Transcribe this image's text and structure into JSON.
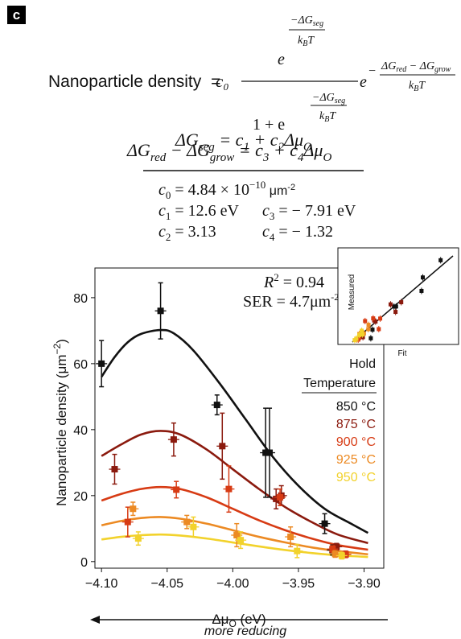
{
  "panel_label": "c",
  "equations": {
    "lhs": "Nanoparticle density",
    "eq": "=",
    "c0": "c₀",
    "e": "e",
    "exp_num": "−ΔG",
    "seg": "seg",
    "kbt": "k",
    "kbt_sub": "B",
    "kbt_T": "T",
    "one_plus": "1 + e",
    "exp_neg": "−",
    "red_grow_num": "ΔG",
    "red": "red",
    "minus": " − ΔG",
    "grow": "grow",
    "eq2_lhs": "ΔG",
    "eq2_sub": "seg",
    "eq2_rhs_a": " = c",
    "eq2_rhs_1": "1",
    "eq2_rhs_b": " + c",
    "eq2_rhs_2": "2",
    "eq2_rhs_c": "Δμ",
    "eq2_rhs_O": "O",
    "eq3_a": "ΔG",
    "eq3_red": "red",
    "eq3_b": " − ΔG",
    "eq3_grow": "grow",
    "eq3_c": " = c",
    "eq3_3": "3",
    "eq3_d": " + c",
    "eq3_4": "4",
    "eq3_e": "Δμ",
    "eq3_O": "O"
  },
  "constants": {
    "c0_name": "c",
    "c0_sub": "0",
    "c0_value": " = 4.84 × 10",
    "c0_exp": "−10",
    "c0_unit": " μm",
    "c0_unit_exp": "-2",
    "c1_name": "c",
    "c1_sub": "1",
    "c1_value": " = 12.6 eV",
    "c2_name": "c",
    "c2_sub": "2",
    "c2_value": " = 3.13",
    "c3_name": "c",
    "c3_sub": "3",
    "c3_value": " = − 7.91 eV",
    "c4_name": "c",
    "c4_sub": "4",
    "c4_value": " = − 1.32"
  },
  "chart_data": {
    "type": "scatter",
    "xlabel": "Δμ",
    "xlabel_sub": "O",
    "xlabel_unit": " (eV)",
    "ylabel": "Nanoparticle density (μm",
    "ylabel_exp": "−2",
    "ylabel_end": ")",
    "xlim": [
      -4.105,
      -3.885
    ],
    "ylim": [
      -2,
      89
    ],
    "xticks": [
      -4.1,
      -4.05,
      -4.0,
      -3.95,
      -3.9
    ],
    "xtick_labels": [
      "−4.10",
      "−4.05",
      "−4.00",
      "−3.95",
      "−3.90"
    ],
    "yticks": [
      0,
      20,
      40,
      60,
      80
    ],
    "ytick_labels": [
      "0",
      "20",
      "40",
      "60",
      "80"
    ],
    "r2": "R",
    "r2_exp": "2",
    "r2_value": " = 0.94",
    "ser": "SER = 4.7μm",
    "ser_exp": "-2",
    "legend_title_1": "Hold",
    "legend_title_2": "Temperature",
    "legend_placement": "right",
    "series": [
      {
        "name": "850 °C",
        "color": "#111111",
        "points": [
          [
            -4.1,
            60,
            7
          ],
          [
            -4.055,
            76,
            8.5
          ],
          [
            -4.012,
            47.5,
            3
          ],
          [
            -3.975,
            33,
            13.5
          ],
          [
            -3.972,
            33,
            13.5
          ],
          [
            -3.93,
            11.5,
            3
          ],
          [
            -3.924,
            3.5,
            1.5
          ]
        ],
        "curve": [
          [
            -4.1,
            56
          ],
          [
            -4.09,
            62
          ],
          [
            -4.08,
            66.5
          ],
          [
            -4.07,
            69
          ],
          [
            -4.055,
            70.2
          ],
          [
            -4.045,
            69.2
          ],
          [
            -4.03,
            64
          ],
          [
            -4.01,
            54
          ],
          [
            -3.99,
            43
          ],
          [
            -3.97,
            32
          ],
          [
            -3.95,
            23
          ],
          [
            -3.93,
            16
          ],
          [
            -3.91,
            11.5
          ],
          [
            -3.897,
            8.7
          ]
        ]
      },
      {
        "name": "875 °C",
        "color": "#8b1a0e",
        "points": [
          [
            -4.09,
            28,
            4.5
          ],
          [
            -4.045,
            37,
            5
          ],
          [
            -4.008,
            35,
            10
          ],
          [
            -3.967,
            19,
            3
          ],
          [
            -3.963,
            20,
            3
          ],
          [
            -3.921,
            4.5,
            1
          ]
        ],
        "curve": [
          [
            -4.1,
            32
          ],
          [
            -4.085,
            35.5
          ],
          [
            -4.07,
            38.5
          ],
          [
            -4.055,
            39.6
          ],
          [
            -4.04,
            38.5
          ],
          [
            -4.02,
            34
          ],
          [
            -4.0,
            28
          ],
          [
            -3.98,
            22
          ],
          [
            -3.96,
            16.5
          ],
          [
            -3.94,
            12
          ],
          [
            -3.92,
            8.2
          ],
          [
            -3.897,
            5.6
          ]
        ]
      },
      {
        "name": "900 °C",
        "color": "#d73b14",
        "points": [
          [
            -4.08,
            12,
            4.5
          ],
          [
            -4.043,
            21.8,
            2.5
          ],
          [
            -4.003,
            22,
            7
          ],
          [
            -3.964,
            19.5,
            2.5
          ],
          [
            -3.924,
            3.8,
            1
          ],
          [
            -3.914,
            2.2,
            1
          ]
        ],
        "curve": [
          [
            -4.1,
            18.5
          ],
          [
            -4.085,
            20.5
          ],
          [
            -4.07,
            22
          ],
          [
            -4.055,
            22.6
          ],
          [
            -4.04,
            22
          ],
          [
            -4.02,
            19.5
          ],
          [
            -4.0,
            16
          ],
          [
            -3.98,
            12.5
          ],
          [
            -3.96,
            9.5
          ],
          [
            -3.94,
            7
          ],
          [
            -3.92,
            5
          ],
          [
            -3.897,
            3.6
          ]
        ]
      },
      {
        "name": "925 °C",
        "color": "#ec8a23",
        "points": [
          [
            -4.076,
            16,
            2
          ],
          [
            -4.035,
            12,
            2
          ],
          [
            -3.997,
            8,
            3.5
          ],
          [
            -3.956,
            7.5,
            3
          ],
          [
            -3.922,
            2.3,
            1
          ]
        ],
        "curve": [
          [
            -4.1,
            11
          ],
          [
            -4.085,
            12.3
          ],
          [
            -4.07,
            13.2
          ],
          [
            -4.055,
            13.5
          ],
          [
            -4.04,
            13
          ],
          [
            -4.02,
            11.5
          ],
          [
            -4.0,
            9.5
          ],
          [
            -3.98,
            7.5
          ],
          [
            -3.96,
            5.8
          ],
          [
            -3.94,
            4.3
          ],
          [
            -3.92,
            3.2
          ],
          [
            -3.897,
            2.2
          ]
        ]
      },
      {
        "name": "950 °C",
        "color": "#f2d22c",
        "points": [
          [
            -4.072,
            7,
            2
          ],
          [
            -4.03,
            10.5,
            3
          ],
          [
            -3.994,
            6.5,
            2.5
          ],
          [
            -3.951,
            3.2,
            2
          ],
          [
            -3.917,
            1.8,
            1
          ]
        ],
        "curve": [
          [
            -4.1,
            6.7
          ],
          [
            -4.085,
            7.5
          ],
          [
            -4.07,
            8
          ],
          [
            -4.055,
            8.2
          ],
          [
            -4.04,
            7.9
          ],
          [
            -4.02,
            7
          ],
          [
            -4.0,
            5.8
          ],
          [
            -3.98,
            4.6
          ],
          [
            -3.96,
            3.5
          ],
          [
            -3.94,
            2.6
          ],
          [
            -3.92,
            1.9
          ],
          [
            -3.897,
            1.4
          ]
        ]
      }
    ]
  },
  "inset": {
    "xlabel": "Fit",
    "ylabel": "Measured"
  },
  "arrow_label": "more reducing"
}
